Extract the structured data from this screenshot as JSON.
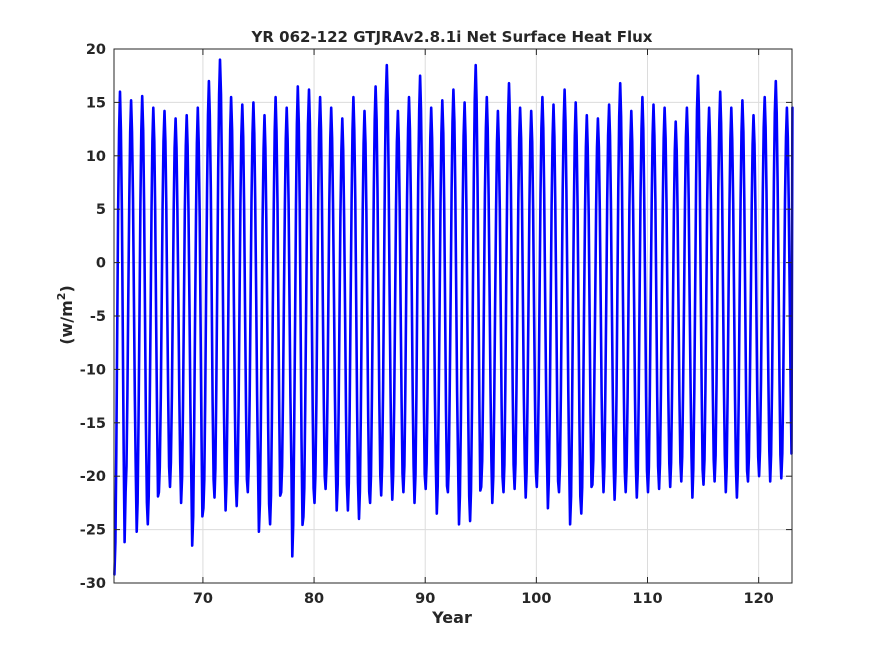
{
  "chart_data": {
    "type": "line",
    "title": "YR 062-122 GTJRAv2.8.1i Net Surface Heat Flux",
    "xlabel": "Year",
    "ylabel_base": "(w/m",
    "ylabel_sup": "2",
    "ylabel_close": ")",
    "xlim": [
      62,
      123
    ],
    "ylim": [
      -30,
      20
    ],
    "xticks": [
      70,
      80,
      90,
      100,
      110,
      120
    ],
    "yticks": [
      -30,
      -25,
      -20,
      -15,
      -10,
      -5,
      0,
      5,
      10,
      15,
      20
    ],
    "grid": true,
    "color": "#0000ff",
    "series": [
      {
        "samples_per_year": 12,
        "x_start": 62.04,
        "annual_max": [
          16,
          15.2,
          15.6,
          14.5,
          14.2,
          13.5,
          13.8,
          14.5,
          17,
          19,
          15.5,
          14.8,
          15,
          13.8,
          15.5,
          14.5,
          16.5,
          16.2,
          15.5,
          14.5,
          13.5,
          15.5,
          14.2,
          16.5,
          18.5,
          14.2,
          15.5,
          17.5,
          14.5,
          15.2,
          16.2,
          15,
          18.5,
          15.5,
          14.2,
          16.8,
          14.5,
          14.2,
          15.5,
          14.8,
          16.2,
          15,
          13.8,
          13.5,
          14.8,
          16.8,
          14.2,
          15.5,
          14.8,
          14.5,
          13.2,
          14.5,
          17.5,
          14.5,
          16,
          14.5,
          15.2,
          13.8,
          15.5,
          17,
          14.5
        ],
        "annual_min": [
          -29.2,
          -21.5,
          -25.2,
          -24.5,
          -21.5,
          -21,
          -22.5,
          -26.5,
          -23,
          -22,
          -23.2,
          -22.8,
          -21.5,
          -25.2,
          -24.5,
          -21.5,
          -27.5,
          -23.8,
          -22.5,
          -21.2,
          -23.2,
          -23.2,
          -24,
          -22.5,
          -21.8,
          -22.2,
          -21.5,
          -22.5,
          -21.2,
          -23.5,
          -21.5,
          -24.5,
          -24.2,
          -21,
          -22.5,
          -21.5,
          -21.2,
          -22,
          -21,
          -23,
          -21.5,
          -24.5,
          -23.5,
          -20.8,
          -21.5,
          -22.2,
          -21.5,
          -22,
          -21.5,
          -21.2,
          -21,
          -20.5,
          -22,
          -20.8,
          -20.5,
          -21.5,
          -22,
          -20.5,
          -20,
          -20.5,
          -20.2
        ],
        "final_value": 14.5
      }
    ]
  }
}
